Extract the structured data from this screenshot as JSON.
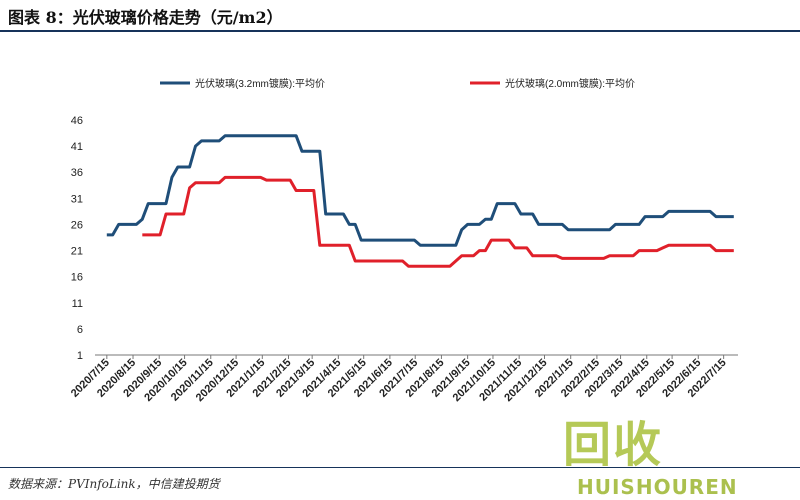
{
  "header": {
    "title": "图表 8：光伏玻璃价格走势（元/m2）"
  },
  "footer": {
    "source": "数据来源：PVInfoLink，中信建投期货"
  },
  "watermark": {
    "cn": "回收",
    "en": "HUISHOUREN"
  },
  "colors": {
    "series_3_2": "#1f4e79",
    "series_2_0": "#e0202a",
    "header_rule": "#16335a",
    "watermark": "#9fba28"
  },
  "chart_data": {
    "type": "line",
    "title": "",
    "xlabel": "",
    "ylabel": "",
    "ylim": [
      1,
      46
    ],
    "yticks": [
      1,
      6,
      11,
      16,
      21,
      26,
      31,
      36,
      41,
      46
    ],
    "grid": false,
    "legend": "top",
    "x_tick_labels": [
      "2020/7/15",
      "2020/8/15",
      "2020/9/15",
      "2020/10/15",
      "2020/11/15",
      "2020/12/15",
      "2021/1/15",
      "2021/2/15",
      "2021/3/15",
      "2021/4/15",
      "2021/5/15",
      "2021/6/15",
      "2021/7/15",
      "2021/8/15",
      "2021/9/15",
      "2021/10/15",
      "2021/11/15",
      "2021/12/15",
      "2022/1/15",
      "2022/2/15",
      "2022/3/15",
      "2022/4/15",
      "2022/5/15",
      "2022/6/15",
      "2022/7/15"
    ],
    "series": [
      {
        "name": "光伏玻璃(3.2mm镀膜):平均价",
        "color": "#1f4e79",
        "points": [
          [
            "2020/7/15",
            24
          ],
          [
            "2020/7/22",
            24
          ],
          [
            "2020/7/29",
            26
          ],
          [
            "2020/8/5",
            26
          ],
          [
            "2020/8/12",
            26
          ],
          [
            "2020/8/19",
            26
          ],
          [
            "2020/8/26",
            27
          ],
          [
            "2020/9/2",
            30
          ],
          [
            "2020/9/9",
            30
          ],
          [
            "2020/9/16",
            30
          ],
          [
            "2020/9/23",
            30
          ],
          [
            "2020/9/30",
            35
          ],
          [
            "2020/10/7",
            37
          ],
          [
            "2020/10/14",
            37
          ],
          [
            "2020/10/21",
            37
          ],
          [
            "2020/10/28",
            41
          ],
          [
            "2020/11/4",
            42
          ],
          [
            "2020/11/11",
            42
          ],
          [
            "2020/11/18",
            42
          ],
          [
            "2020/11/25",
            42
          ],
          [
            "2020/12/2",
            43
          ],
          [
            "2020/12/9",
            43
          ],
          [
            "2020/12/16",
            43
          ],
          [
            "2020/12/23",
            43
          ],
          [
            "2020/12/30",
            43
          ],
          [
            "2021/1/6",
            43
          ],
          [
            "2021/1/13",
            43
          ],
          [
            "2021/1/20",
            43
          ],
          [
            "2021/1/27",
            43
          ],
          [
            "2021/2/3",
            43
          ],
          [
            "2021/2/10",
            43
          ],
          [
            "2021/2/17",
            43
          ],
          [
            "2021/2/24",
            43
          ],
          [
            "2021/3/3",
            40
          ],
          [
            "2021/3/10",
            40
          ],
          [
            "2021/3/17",
            40
          ],
          [
            "2021/3/24",
            40
          ],
          [
            "2021/3/31",
            28
          ],
          [
            "2021/4/7",
            28
          ],
          [
            "2021/4/14",
            28
          ],
          [
            "2021/4/21",
            28
          ],
          [
            "2021/4/28",
            26
          ],
          [
            "2021/5/5",
            26
          ],
          [
            "2021/5/12",
            23
          ],
          [
            "2021/5/19",
            23
          ],
          [
            "2021/5/26",
            23
          ],
          [
            "2021/6/2",
            23
          ],
          [
            "2021/6/9",
            23
          ],
          [
            "2021/6/16",
            23
          ],
          [
            "2021/6/23",
            23
          ],
          [
            "2021/6/30",
            23
          ],
          [
            "2021/7/7",
            23
          ],
          [
            "2021/7/14",
            23
          ],
          [
            "2021/7/21",
            22
          ],
          [
            "2021/7/28",
            22
          ],
          [
            "2021/8/4",
            22
          ],
          [
            "2021/8/11",
            22
          ],
          [
            "2021/8/18",
            22
          ],
          [
            "2021/8/25",
            22
          ],
          [
            "2021/9/1",
            22
          ],
          [
            "2021/9/8",
            25
          ],
          [
            "2021/9/15",
            26
          ],
          [
            "2021/9/22",
            26
          ],
          [
            "2021/9/29",
            26
          ],
          [
            "2021/10/6",
            27
          ],
          [
            "2021/10/13",
            27
          ],
          [
            "2021/10/20",
            30
          ],
          [
            "2021/10/27",
            30
          ],
          [
            "2021/11/3",
            30
          ],
          [
            "2021/11/10",
            30
          ],
          [
            "2021/11/17",
            28
          ],
          [
            "2021/11/24",
            28
          ],
          [
            "2021/12/1",
            28
          ],
          [
            "2021/12/8",
            26
          ],
          [
            "2021/12/15",
            26
          ],
          [
            "2021/12/22",
            26
          ],
          [
            "2021/12/29",
            26
          ],
          [
            "2022/1/5",
            26
          ],
          [
            "2022/1/12",
            25
          ],
          [
            "2022/1/19",
            25
          ],
          [
            "2022/1/26",
            25
          ],
          [
            "2022/2/2",
            25
          ],
          [
            "2022/2/9",
            25
          ],
          [
            "2022/2/16",
            25
          ],
          [
            "2022/2/23",
            25
          ],
          [
            "2022/3/2",
            25
          ],
          [
            "2022/3/9",
            26
          ],
          [
            "2022/3/16",
            26
          ],
          [
            "2022/3/23",
            26
          ],
          [
            "2022/3/30",
            26
          ],
          [
            "2022/4/6",
            26
          ],
          [
            "2022/4/13",
            27.5
          ],
          [
            "2022/4/20",
            27.5
          ],
          [
            "2022/4/27",
            27.5
          ],
          [
            "2022/5/4",
            27.5
          ],
          [
            "2022/5/11",
            28.5
          ],
          [
            "2022/5/18",
            28.5
          ],
          [
            "2022/5/25",
            28.5
          ],
          [
            "2022/6/1",
            28.5
          ],
          [
            "2022/6/8",
            28.5
          ],
          [
            "2022/6/15",
            28.5
          ],
          [
            "2022/6/22",
            28.5
          ],
          [
            "2022/6/29",
            28.5
          ],
          [
            "2022/7/6",
            27.5
          ],
          [
            "2022/7/13",
            27.5
          ],
          [
            "2022/7/20",
            27.5
          ],
          [
            "2022/7/27",
            27.5
          ]
        ]
      },
      {
        "name": "光伏玻璃(2.0mm镀膜):平均价",
        "color": "#e0202a",
        "points": [
          [
            "2020/8/26",
            24
          ],
          [
            "2020/9/2",
            24
          ],
          [
            "2020/9/9",
            24
          ],
          [
            "2020/9/16",
            24
          ],
          [
            "2020/9/23",
            28
          ],
          [
            "2020/9/30",
            28
          ],
          [
            "2020/10/7",
            28
          ],
          [
            "2020/10/14",
            28
          ],
          [
            "2020/10/21",
            33
          ],
          [
            "2020/10/28",
            34
          ],
          [
            "2020/11/4",
            34
          ],
          [
            "2020/11/11",
            34
          ],
          [
            "2020/11/18",
            34
          ],
          [
            "2020/11/25",
            34
          ],
          [
            "2020/12/2",
            35
          ],
          [
            "2020/12/9",
            35
          ],
          [
            "2020/12/16",
            35
          ],
          [
            "2020/12/23",
            35
          ],
          [
            "2020/12/30",
            35
          ],
          [
            "2021/1/6",
            35
          ],
          [
            "2021/1/13",
            35
          ],
          [
            "2021/1/20",
            34.5
          ],
          [
            "2021/1/27",
            34.5
          ],
          [
            "2021/2/3",
            34.5
          ],
          [
            "2021/2/10",
            34.5
          ],
          [
            "2021/2/17",
            34.5
          ],
          [
            "2021/2/24",
            32.5
          ],
          [
            "2021/3/3",
            32.5
          ],
          [
            "2021/3/10",
            32.5
          ],
          [
            "2021/3/17",
            32.5
          ],
          [
            "2021/3/24",
            22
          ],
          [
            "2021/3/31",
            22
          ],
          [
            "2021/4/7",
            22
          ],
          [
            "2021/4/14",
            22
          ],
          [
            "2021/4/21",
            22
          ],
          [
            "2021/4/28",
            22
          ],
          [
            "2021/5/5",
            19
          ],
          [
            "2021/5/12",
            19
          ],
          [
            "2021/5/19",
            19
          ],
          [
            "2021/5/26",
            19
          ],
          [
            "2021/6/2",
            19
          ],
          [
            "2021/6/9",
            19
          ],
          [
            "2021/6/16",
            19
          ],
          [
            "2021/6/23",
            19
          ],
          [
            "2021/6/30",
            19
          ],
          [
            "2021/7/7",
            18
          ],
          [
            "2021/7/14",
            18
          ],
          [
            "2021/7/21",
            18
          ],
          [
            "2021/7/28",
            18
          ],
          [
            "2021/8/4",
            18
          ],
          [
            "2021/8/11",
            18
          ],
          [
            "2021/8/18",
            18
          ],
          [
            "2021/8/25",
            18
          ],
          [
            "2021/9/1",
            19
          ],
          [
            "2021/9/8",
            20
          ],
          [
            "2021/9/15",
            20
          ],
          [
            "2021/9/22",
            20
          ],
          [
            "2021/9/29",
            21
          ],
          [
            "2021/10/6",
            21
          ],
          [
            "2021/10/13",
            23
          ],
          [
            "2021/10/20",
            23
          ],
          [
            "2021/10/27",
            23
          ],
          [
            "2021/11/3",
            23
          ],
          [
            "2021/11/10",
            21.5
          ],
          [
            "2021/11/17",
            21.5
          ],
          [
            "2021/11/24",
            21.5
          ],
          [
            "2021/12/1",
            20
          ],
          [
            "2021/12/8",
            20
          ],
          [
            "2021/12/15",
            20
          ],
          [
            "2021/12/22",
            20
          ],
          [
            "2021/12/29",
            20
          ],
          [
            "2022/1/5",
            19.5
          ],
          [
            "2022/1/12",
            19.5
          ],
          [
            "2022/1/19",
            19.5
          ],
          [
            "2022/1/26",
            19.5
          ],
          [
            "2022/2/2",
            19.5
          ],
          [
            "2022/2/9",
            19.5
          ],
          [
            "2022/2/16",
            19.5
          ],
          [
            "2022/2/23",
            19.5
          ],
          [
            "2022/3/2",
            20
          ],
          [
            "2022/3/9",
            20
          ],
          [
            "2022/3/16",
            20
          ],
          [
            "2022/3/23",
            20
          ],
          [
            "2022/3/30",
            20
          ],
          [
            "2022/4/6",
            21
          ],
          [
            "2022/4/13",
            21
          ],
          [
            "2022/4/20",
            21
          ],
          [
            "2022/4/27",
            21
          ],
          [
            "2022/5/4",
            21.5
          ],
          [
            "2022/5/11",
            22
          ],
          [
            "2022/5/18",
            22
          ],
          [
            "2022/5/25",
            22
          ],
          [
            "2022/6/1",
            22
          ],
          [
            "2022/6/8",
            22
          ],
          [
            "2022/6/15",
            22
          ],
          [
            "2022/6/22",
            22
          ],
          [
            "2022/6/29",
            22
          ],
          [
            "2022/7/6",
            21
          ],
          [
            "2022/7/13",
            21
          ],
          [
            "2022/7/20",
            21
          ],
          [
            "2022/7/27",
            21
          ]
        ]
      }
    ]
  }
}
